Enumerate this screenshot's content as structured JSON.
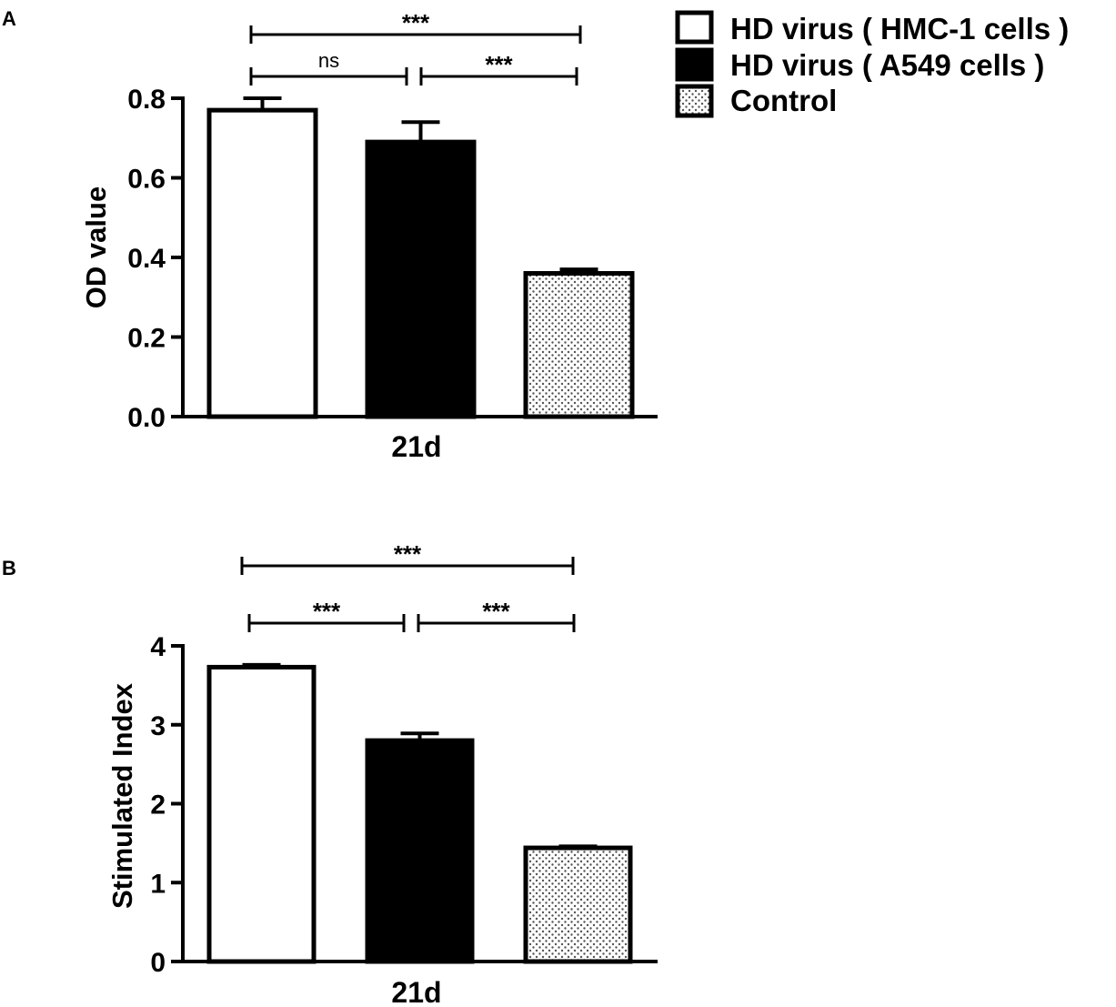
{
  "legend": {
    "items": [
      {
        "label": "HD virus ( HMC-1 cells )",
        "fill": "white"
      },
      {
        "label": "HD virus ( A549 cells )",
        "fill": "black"
      },
      {
        "label": "Control",
        "fill": "dotted"
      }
    ]
  },
  "colors": {
    "bar_outline": "#000000",
    "black_fill": "#000000",
    "white_fill": "#ffffff",
    "dot_color": "#555555"
  },
  "chart_data": [
    {
      "type": "bar",
      "panel": "A",
      "ylabel": "OD value",
      "category": "21d",
      "ylim": [
        0,
        0.8
      ],
      "yticks": [
        "0.0",
        "0.2",
        "0.4",
        "0.6",
        "0.8"
      ],
      "series": [
        {
          "name": "HD virus ( HMC-1 cells )",
          "value": 0.77,
          "error": 0.03
        },
        {
          "name": "HD virus ( A549 cells )",
          "value": 0.69,
          "error": 0.05
        },
        {
          "name": "Control",
          "value": 0.36,
          "error": 0.01
        }
      ],
      "significance": [
        {
          "from": 0,
          "to": 1,
          "label": "ns"
        },
        {
          "from": 1,
          "to": 2,
          "label": "***"
        },
        {
          "from": 0,
          "to": 2,
          "label": "***"
        }
      ]
    },
    {
      "type": "bar",
      "panel": "B",
      "ylabel": "Stimulated Index",
      "category": "21d",
      "ylim": [
        0,
        4
      ],
      "yticks": [
        "0",
        "1",
        "2",
        "3",
        "4"
      ],
      "series": [
        {
          "name": "HD virus ( HMC-1 cells )",
          "value": 3.73,
          "error": 0.03
        },
        {
          "name": "HD virus ( A549 cells )",
          "value": 2.8,
          "error": 0.09
        },
        {
          "name": "Control",
          "value": 1.44,
          "error": 0.02
        }
      ],
      "significance": [
        {
          "from": 0,
          "to": 1,
          "label": "***"
        },
        {
          "from": 1,
          "to": 2,
          "label": "***"
        },
        {
          "from": 0,
          "to": 2,
          "label": "***"
        }
      ]
    }
  ]
}
